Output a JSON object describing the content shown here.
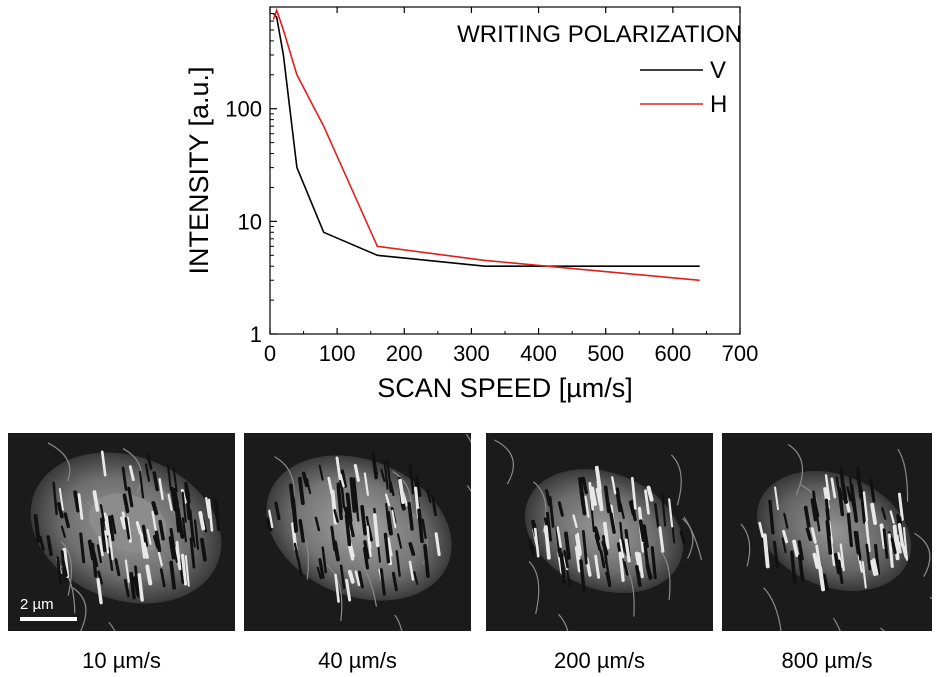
{
  "chart_data": {
    "type": "line",
    "xlabel": "SCAN SPEED [µm/s]",
    "ylabel": "INTENSITY [a.u.]",
    "xlim": [
      0,
      700
    ],
    "ylim": [
      1,
      800
    ],
    "yscale": "log",
    "x_ticks": [
      0,
      100,
      200,
      300,
      400,
      500,
      600,
      700
    ],
    "y_ticks": [
      1,
      10,
      100
    ],
    "grid": false,
    "legend_title": "WRITING POLARIZATION",
    "legend_position": "top-right",
    "series": [
      {
        "name": "V",
        "color": "#000000",
        "x": [
          5,
          10,
          20,
          40,
          80,
          160,
          320,
          640
        ],
        "y": [
          700,
          650,
          300,
          30,
          8,
          5,
          4,
          4
        ]
      },
      {
        "name": "H",
        "color": "#e0201b",
        "x": [
          5,
          10,
          20,
          40,
          80,
          160,
          320,
          640
        ],
        "y": [
          620,
          750,
          500,
          200,
          70,
          6,
          4.5,
          3
        ]
      }
    ]
  },
  "images": [
    {
      "caption": "10 µm/s",
      "scalebar": "2 µm"
    },
    {
      "caption": "40 µm/s"
    },
    {
      "caption": "200 µm/s"
    },
    {
      "caption": "800 µm/s"
    }
  ]
}
